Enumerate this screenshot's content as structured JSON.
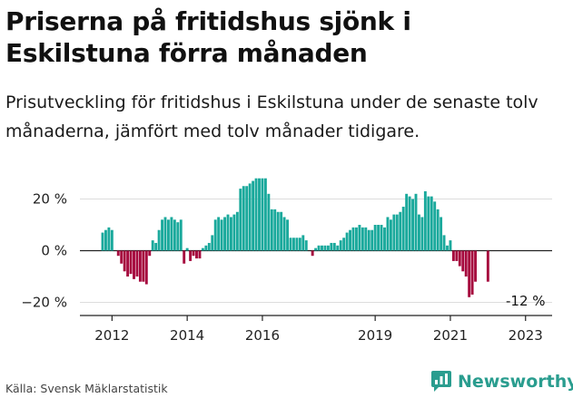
{
  "title": "Priserna på fritidshus sjönk i Eskilstuna förra månaden",
  "subtitle": "Prisutveckling för fritidshus i Eskilstuna under de senaste tolv månaderna, jämfört med tolv månader tidigare.",
  "source": "Källa: Svensk Mäklarstatistik",
  "brand": "Newsworthy",
  "colors": {
    "positive": "#1aa99c",
    "negative": "#a6093e",
    "grid": "#dddddd",
    "axis": "#222222",
    "brand": "#2a9d8f"
  },
  "chart_data": {
    "type": "bar",
    "x_start": "2011-10",
    "ylim": [
      -25,
      30
    ],
    "yticks": [
      20,
      0,
      -20
    ],
    "ytick_labels": [
      "20 %",
      "0 %",
      "−20 %"
    ],
    "xticks": [
      "2012",
      "2014",
      "2016",
      "2019",
      "2021",
      "2023"
    ],
    "grid": true,
    "annotation": "-12 %",
    "values": [
      7,
      8,
      9,
      8,
      0,
      -2,
      -5,
      -8,
      -10,
      -9,
      -11,
      -10,
      -12,
      -12,
      -13,
      -2,
      4,
      3,
      8,
      12,
      13,
      12,
      13,
      12,
      11,
      12,
      -5,
      1,
      -4,
      -2,
      -3,
      -3,
      1,
      2,
      3,
      6,
      12,
      13,
      12,
      13,
      14,
      13,
      14,
      15,
      24,
      25,
      25,
      26,
      27,
      28,
      28,
      28,
      28,
      22,
      16,
      16,
      15,
      15,
      13,
      12,
      5,
      5,
      5,
      5,
      6,
      4,
      0,
      -2,
      1,
      2,
      2,
      2,
      2,
      3,
      3,
      2,
      4,
      5,
      7,
      8,
      9,
      9,
      10,
      9,
      9,
      8,
      8,
      10,
      10,
      10,
      9,
      13,
      12,
      14,
      14,
      15,
      17,
      22,
      21,
      20,
      22,
      14,
      13,
      23,
      21,
      21,
      19,
      16,
      13,
      6,
      2,
      4,
      -4,
      -4,
      -6,
      -8,
      -10,
      -18,
      -17,
      -12,
      0,
      0,
      0,
      -12
    ]
  }
}
